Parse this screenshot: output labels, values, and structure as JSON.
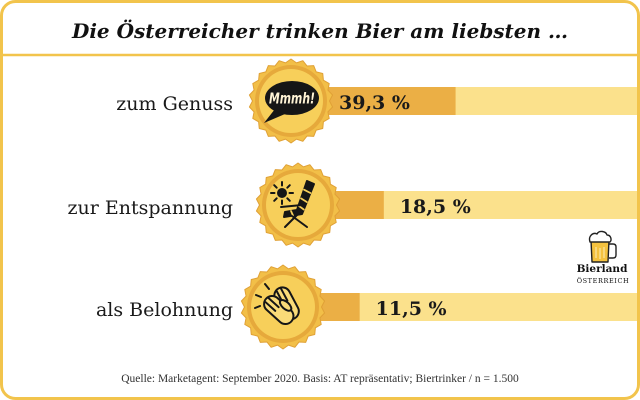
{
  "colors": {
    "frame": "#F2C44C",
    "bar_value": "#EBAF45",
    "bar_track": "#FBE18C",
    "cap_teeth": "#F2BF48",
    "cap_ring": "#E6A93B",
    "cap_disk": "#F7CF5A",
    "icon_ink": "#161616",
    "icon_fill": "#FADB78",
    "beer": "#F4C23F"
  },
  "logo": {
    "icon": "beer-mug-icon",
    "name": "Bierland",
    "region": "ÖSTERREICH"
  },
  "chart_data": {
    "type": "bar",
    "title": "Die Österreicher trinken Bier am liebsten …",
    "categories": [
      "zum Genuss",
      "zur Entspannung",
      "als Belohnung"
    ],
    "values": [
      39.3,
      18.5,
      11.5
    ],
    "value_labels": [
      "39,3 %",
      "18,5 %",
      "11,5 %"
    ],
    "category_icons": [
      "mmmh-speech-bubble-icon",
      "sun-deck-chair-icon",
      "clapping-hands-icon"
    ],
    "bubble_text": "Mmmh!",
    "source": "Quelle: Marketagent: September 2020. Basis: AT repräsentativ; Biertrinker / n = 1.500",
    "grid": false
  }
}
